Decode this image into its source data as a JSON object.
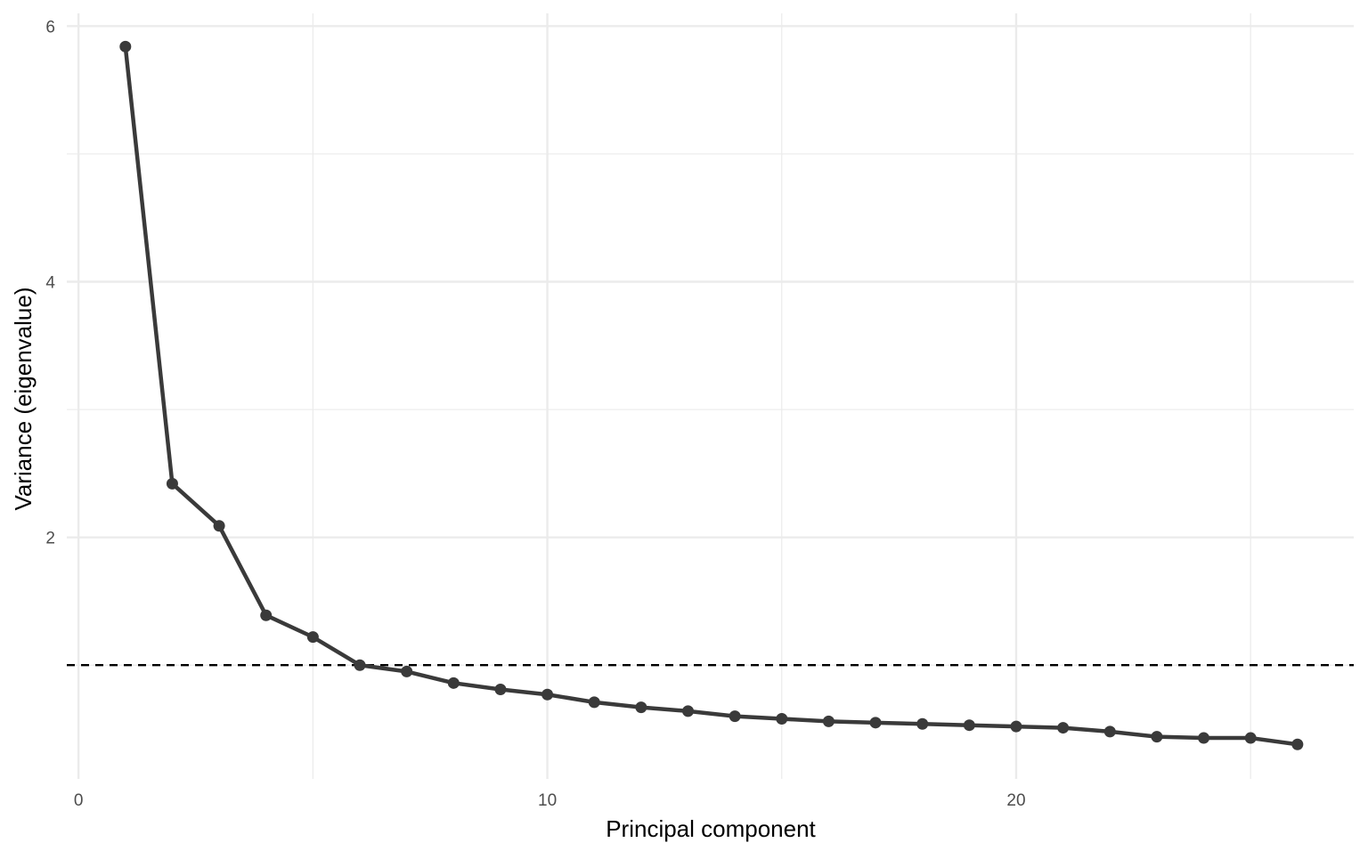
{
  "chart_data": {
    "type": "line",
    "x_label": "Principal component",
    "y_label": "Variance (eigenvalue)",
    "x": [
      1,
      2,
      3,
      4,
      5,
      6,
      7,
      8,
      9,
      10,
      11,
      12,
      13,
      14,
      15,
      16,
      17,
      18,
      19,
      20,
      21,
      22,
      23,
      24,
      25,
      26
    ],
    "series": [
      {
        "color": "#3a3a3a",
        "values": [
          5.84,
          2.42,
          2.09,
          1.39,
          1.22,
          1.0,
          0.95,
          0.86,
          0.81,
          0.77,
          0.71,
          0.67,
          0.64,
          0.6,
          0.58,
          0.56,
          0.55,
          0.54,
          0.53,
          0.52,
          0.51,
          0.48,
          0.44,
          0.43,
          0.43,
          0.38
        ]
      }
    ],
    "xlim": [
      -0.25,
      27.2
    ],
    "ylim": [
      0.11,
      6.1
    ],
    "xticks": [
      0,
      10,
      20
    ],
    "yticks": [
      2,
      4,
      6
    ],
    "minor_xticks": [
      5,
      15,
      25
    ],
    "minor_yticks": [
      1,
      3,
      5
    ],
    "hline": 1,
    "grid": true
  }
}
